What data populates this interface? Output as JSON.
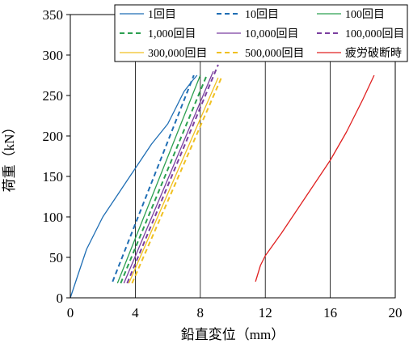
{
  "chart_data": {
    "type": "line",
    "xlabel": "鉛直変位（mm）",
    "ylabel": "荷重（kN）",
    "xlim": [
      0,
      20
    ],
    "ylim": [
      0,
      350
    ],
    "xticks": [
      0,
      4,
      8,
      12,
      16,
      20
    ],
    "yticks": [
      0,
      50,
      100,
      150,
      200,
      250,
      300,
      350
    ],
    "grid": "vertical",
    "legend_position": "top",
    "series": [
      {
        "name": "1回目",
        "color": "#1f6eb4",
        "dash": "solid",
        "x": [
          0,
          0.5,
          1.0,
          2.0,
          3.0,
          3.5,
          4.0,
          5.0,
          6.0,
          6.5,
          7.0,
          7.5,
          7.8
        ],
        "y": [
          0,
          30,
          60,
          100,
          130,
          145,
          160,
          190,
          215,
          235,
          255,
          268,
          275
        ]
      },
      {
        "name": "10回目",
        "color": "#1f6eb4",
        "dash": "dashed",
        "x": [
          2.6,
          7.6
        ],
        "y": [
          20,
          275
        ]
      },
      {
        "name": "100回目",
        "color": "#2ca050",
        "dash": "solid",
        "x": [
          2.9,
          8.0
        ],
        "y": [
          18,
          275
        ]
      },
      {
        "name": "1,000回目",
        "color": "#2ca050",
        "dash": "dashed",
        "x": [
          3.1,
          8.4
        ],
        "y": [
          18,
          275
        ]
      },
      {
        "name": "10,000回目",
        "color": "#7b3fa0",
        "dash": "solid",
        "x": [
          3.3,
          8.8
        ],
        "y": [
          18,
          280
        ]
      },
      {
        "name": "100,000回目",
        "color": "#7b3fa0",
        "dash": "dashed",
        "x": [
          3.5,
          9.1
        ],
        "y": [
          18,
          288
        ]
      },
      {
        "name": "300,000回目",
        "color": "#f0c020",
        "dash": "solid",
        "x": [
          3.6,
          9.1
        ],
        "y": [
          18,
          272
        ]
      },
      {
        "name": "500,000回目",
        "color": "#f0c020",
        "dash": "dashed",
        "x": [
          3.8,
          9.3
        ],
        "y": [
          18,
          272
        ]
      },
      {
        "name": "疲労破断時",
        "color": "#e02020",
        "dash": "solid",
        "x": [
          11.4,
          11.7,
          12.0,
          13.0,
          14.0,
          15.0,
          16.0,
          17.0,
          18.0,
          18.7
        ],
        "y": [
          20,
          40,
          52,
          80,
          110,
          140,
          170,
          205,
          245,
          275
        ]
      }
    ]
  }
}
